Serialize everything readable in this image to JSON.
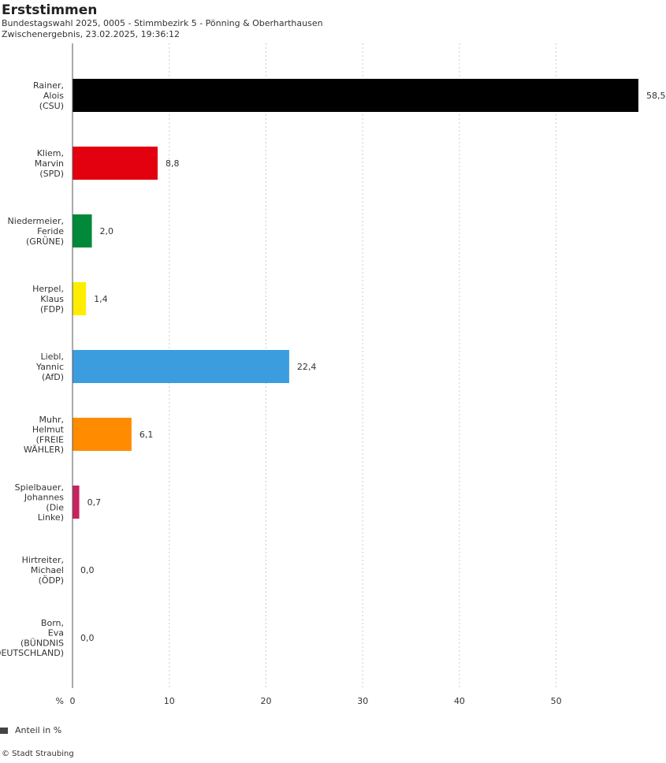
{
  "header": {
    "title": "Erststimmen",
    "subtitle_line1": "Bundestagswahl 2025, 0005 - Stimmbezirk 5 - Pönning & Oberharthausen",
    "subtitle_line2": "Zwischenergebnis, 23.02.2025, 19:36:12"
  },
  "legend": {
    "label": "Anteil in %",
    "color": "#444444"
  },
  "footer": {
    "copyright": "© Stadt Straubing"
  },
  "chart_data": {
    "type": "bar",
    "orientation": "horizontal",
    "title": "Erststimmen",
    "xlabel": "%",
    "xlim": [
      0,
      58.5
    ],
    "xticks": [
      0,
      10,
      20,
      30,
      40,
      50
    ],
    "grid": true,
    "legend_position": "bottom-left",
    "categories": [
      [
        "Rainer,",
        "Alois",
        "(CSU)"
      ],
      [
        "Kliem,",
        "Marvin",
        "(SPD)"
      ],
      [
        "Niedermeier,",
        "Feride",
        "(GRÜNE)"
      ],
      [
        "Herpel,",
        "Klaus",
        "(FDP)"
      ],
      [
        "Liebl,",
        "Yannic",
        "(AfD)"
      ],
      [
        "Muhr,",
        "Helmut",
        "(FREIE",
        "WÄHLER)"
      ],
      [
        "Spielbauer,",
        "Johannes",
        "(Die",
        "Linke)"
      ],
      [
        "Hirtreiter,",
        "Michael",
        "(ÖDP)"
      ],
      [
        "Born,",
        "Eva",
        "(BÜNDNIS",
        "DEUTSCHLAND)"
      ]
    ],
    "values": [
      58.5,
      8.8,
      2.0,
      1.4,
      22.4,
      6.1,
      0.7,
      0.0,
      0.0
    ],
    "value_labels": [
      "58,5",
      "8,8",
      "2,0",
      "1,4",
      "22,4",
      "6,1",
      "0,7",
      "0,0",
      "0,0"
    ],
    "colors": [
      "#000000",
      "#e3000f",
      "#008939",
      "#ffed00",
      "#3b9ddd",
      "#ff8c00",
      "#c8235f",
      "#ff6400",
      "#7c1c53"
    ],
    "series": [
      {
        "name": "Anteil in %"
      }
    ]
  }
}
